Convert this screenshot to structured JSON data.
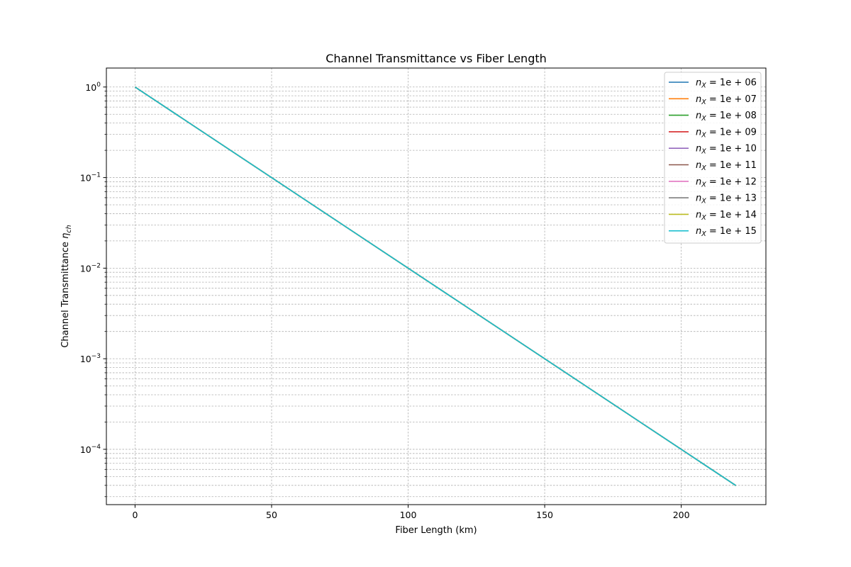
{
  "chart_data": {
    "type": "line",
    "title": "Channel Transmittance vs Fiber Length",
    "xlabel": "Fiber Length (km)",
    "ylabel": {
      "text": "Channel Transmittance ",
      "symbol": "η",
      "subscript": "ch"
    },
    "x_scale": "linear",
    "y_scale": "log",
    "xlim": [
      -10.5,
      231
    ],
    "ylim": [
      2.45e-05,
      1.62
    ],
    "x_ticks": [
      0,
      50,
      100,
      150,
      200
    ],
    "y_ticks": [
      {
        "value": 1,
        "base": "10",
        "exp": "0"
      },
      {
        "value": 0.1,
        "base": "10",
        "exp": "−1"
      },
      {
        "value": 0.01,
        "base": "10",
        "exp": "−2"
      },
      {
        "value": 0.001,
        "base": "10",
        "exp": "−3"
      },
      {
        "value": 0.0001,
        "base": "10",
        "exp": "−4"
      }
    ],
    "grid": true,
    "legend_placement": "top-right",
    "series": [
      {
        "name": "1e + 06",
        "color": "#1f77b4",
        "x": [
          0,
          220
        ],
        "y": [
          1,
          3.98e-05
        ]
      },
      {
        "name": "1e + 07",
        "color": "#ff7f0e",
        "x": [
          0,
          220
        ],
        "y": [
          1,
          3.98e-05
        ]
      },
      {
        "name": "1e + 08",
        "color": "#2ca02c",
        "x": [
          0,
          220
        ],
        "y": [
          1,
          3.98e-05
        ]
      },
      {
        "name": "1e + 09",
        "color": "#d62728",
        "x": [
          0,
          220
        ],
        "y": [
          1,
          3.98e-05
        ]
      },
      {
        "name": "1e + 10",
        "color": "#9467bd",
        "x": [
          0,
          220
        ],
        "y": [
          1,
          3.98e-05
        ]
      },
      {
        "name": "1e + 11",
        "color": "#8c564b",
        "x": [
          0,
          220
        ],
        "y": [
          1,
          3.98e-05
        ]
      },
      {
        "name": "1e + 12",
        "color": "#e377c2",
        "x": [
          0,
          220
        ],
        "y": [
          1,
          3.98e-05
        ]
      },
      {
        "name": "1e + 13",
        "color": "#7f7f7f",
        "x": [
          0,
          220
        ],
        "y": [
          1,
          3.98e-05
        ]
      },
      {
        "name": "1e + 14",
        "color": "#bcbd22",
        "x": [
          0,
          220
        ],
        "y": [
          1,
          3.98e-05
        ]
      },
      {
        "name": "1e + 15",
        "color": "#17becf",
        "x": [
          0,
          220
        ],
        "y": [
          1,
          3.98e-05
        ]
      }
    ],
    "legend_prefix": {
      "symbol": "n",
      "subscript": "X",
      "operator": " = "
    }
  }
}
